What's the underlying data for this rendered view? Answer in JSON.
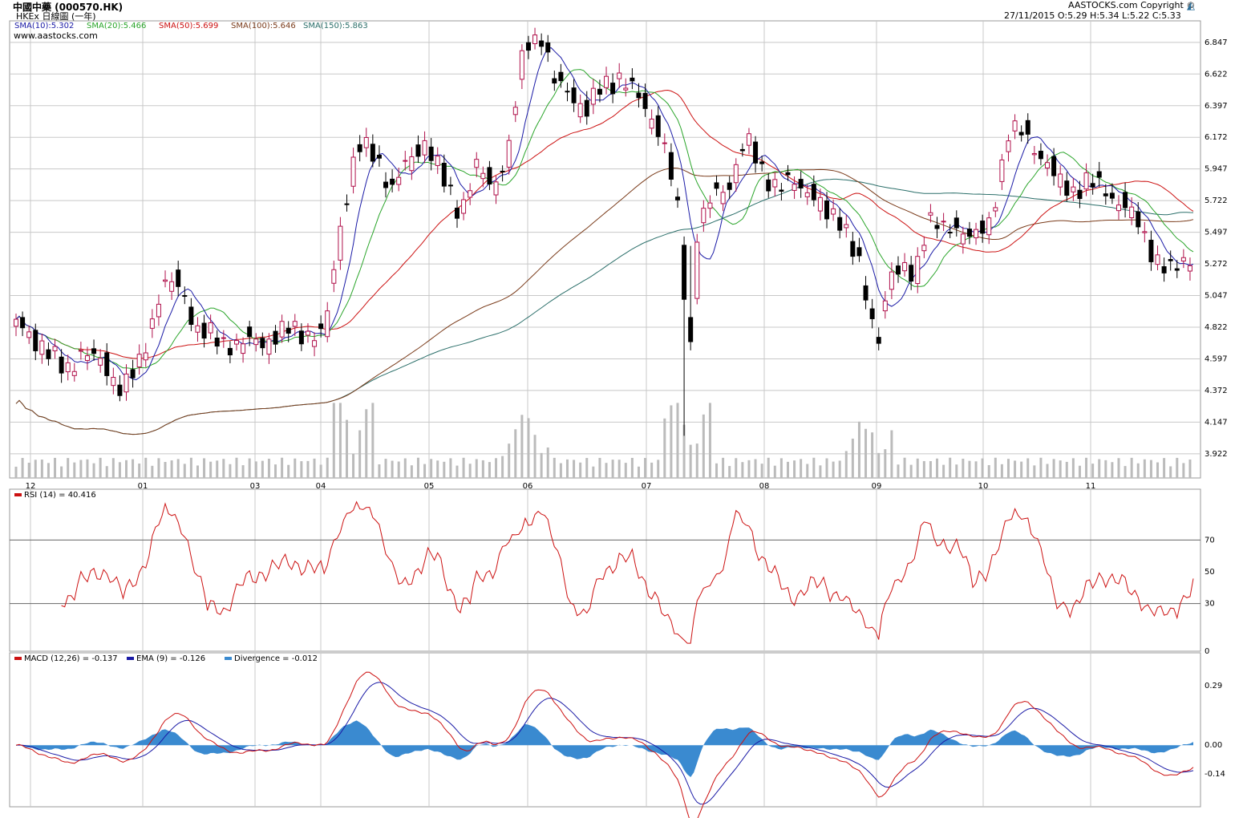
{
  "header": {
    "title": "中國中藥 (000570.HK)",
    "subtitle": "HKEx 日線圖 (一年)",
    "copyright": "AASTOCKS.com Copyright ©",
    "site": "www.aastocks.com",
    "ohlc": "27/11/2015   O:5.29  H:5.34  L:5.22  C:5.33"
  },
  "colors": {
    "sma10": "#1a1aa6",
    "sma20": "#2aa52a",
    "sma50": "#cc1111",
    "sma100": "#7a3b1a",
    "sma150": "#2b6f6a",
    "up": "#b0104a",
    "down": "#000000",
    "volume": "#bbbbbb",
    "rsi": "#cc1111",
    "macd": "#cc1111",
    "ema": "#1a1aa6",
    "divergence": "#3a8ad0",
    "grid": "#c8c8c8"
  },
  "chart_data": [
    {
      "type": "candlestick",
      "panel": "price",
      "x_ticks": [
        "12",
        "01",
        "03",
        "04",
        "05",
        "06",
        "07",
        "08",
        "09",
        "10",
        "11"
      ],
      "ylim": [
        3.75,
        7.0
      ],
      "y_ticks": [
        "6.847",
        "6.622",
        "6.397",
        "6.172",
        "5.947",
        "5.722",
        "5.497",
        "5.272",
        "5.047",
        "4.822",
        "4.597",
        "4.372",
        "4.147",
        "3.922"
      ],
      "legend": [
        {
          "key": "sma10",
          "label": "SMA(10):5.302"
        },
        {
          "key": "sma20",
          "label": "SMA(20):5.466"
        },
        {
          "key": "sma50",
          "label": "SMA(50):5.699"
        },
        {
          "key": "sma100",
          "label": "SMA(100):5.646"
        },
        {
          "key": "sma150",
          "label": "SMA(150):5.863"
        }
      ],
      "close_anchors": [
        [
          0,
          4.84
        ],
        [
          8,
          4.7
        ],
        [
          15,
          4.5
        ],
        [
          20,
          4.65
        ],
        [
          27,
          4.55
        ],
        [
          33,
          4.38
        ],
        [
          38,
          4.55
        ],
        [
          45,
          5.12
        ],
        [
          51,
          5.1
        ],
        [
          56,
          4.8
        ],
        [
          63,
          4.72
        ],
        [
          70,
          4.7
        ],
        [
          77,
          4.73
        ],
        [
          84,
          4.8
        ],
        [
          91,
          4.78
        ],
        [
          95,
          4.75
        ],
        [
          100,
          5.55
        ],
        [
          105,
          6.1
        ],
        [
          111,
          6.05
        ],
        [
          116,
          5.8
        ],
        [
          121,
          6.0
        ],
        [
          126,
          6.15
        ],
        [
          132,
          5.85
        ],
        [
          137,
          5.65
        ],
        [
          142,
          5.95
        ],
        [
          147,
          5.82
        ],
        [
          152,
          6.1
        ],
        [
          157,
          6.85
        ],
        [
          162,
          6.9
        ],
        [
          166,
          6.55
        ],
        [
          171,
          6.5
        ],
        [
          176,
          6.35
        ],
        [
          181,
          6.55
        ],
        [
          186,
          6.6
        ],
        [
          192,
          6.45
        ],
        [
          197,
          6.3
        ],
        [
          201,
          6.0
        ],
        [
          204,
          5.65
        ],
        [
          206,
          5.1
        ],
        [
          208,
          4.7
        ],
        [
          210,
          5.5
        ],
        [
          215,
          5.75
        ],
        [
          220,
          5.85
        ],
        [
          225,
          6.15
        ],
        [
          230,
          5.95
        ],
        [
          235,
          5.8
        ],
        [
          240,
          5.85
        ],
        [
          245,
          5.8
        ],
        [
          250,
          5.6
        ],
        [
          255,
          5.6
        ],
        [
          260,
          5.25
        ],
        [
          263,
          4.9
        ],
        [
          266,
          4.75
        ],
        [
          269,
          5.2
        ],
        [
          273,
          5.2
        ],
        [
          277,
          5.2
        ],
        [
          281,
          5.6
        ],
        [
          286,
          5.5
        ],
        [
          290,
          5.55
        ],
        [
          296,
          5.45
        ],
        [
          300,
          5.55
        ],
        [
          306,
          6.2
        ],
        [
          311,
          6.2
        ],
        [
          316,
          6.05
        ],
        [
          321,
          5.85
        ],
        [
          326,
          5.8
        ],
        [
          330,
          5.85
        ],
        [
          336,
          5.8
        ],
        [
          341,
          5.7
        ],
        [
          346,
          5.55
        ],
        [
          352,
          5.3
        ],
        [
          356,
          5.2
        ],
        [
          360,
          5.3
        ],
        [
          363,
          5.33
        ]
      ],
      "volume_range": [
        0,
        1000000
      ],
      "volume_note": "daily turnover bars in lower part of price panel"
    },
    {
      "type": "line",
      "panel": "rsi",
      "legend": [
        {
          "key": "rsi",
          "label": "RSI (14) = 40.416"
        }
      ],
      "ylim": [
        0,
        100
      ],
      "y_ticks": [
        "70",
        "50",
        "30",
        "0"
      ]
    },
    {
      "type": "line",
      "panel": "macd",
      "legend": [
        {
          "key": "macd",
          "label": "MACD (12,26) = -0.137"
        },
        {
          "key": "ema",
          "label": "EMA (9) = -0.126"
        },
        {
          "key": "divergence",
          "label": "Divergence = -0.012"
        }
      ],
      "ylim": [
        -0.3,
        0.45
      ],
      "y_ticks": [
        "0.29",
        "0.00",
        "-0.14"
      ]
    }
  ]
}
